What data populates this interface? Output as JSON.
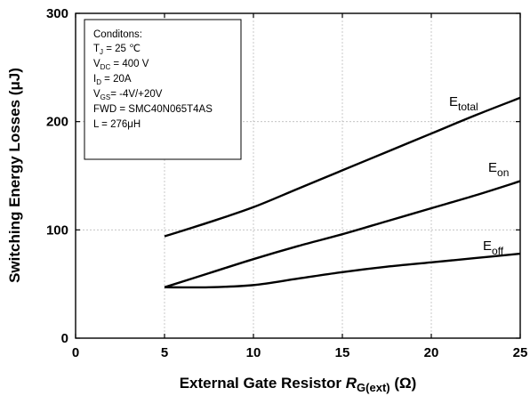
{
  "chart_data": {
    "type": "line",
    "xlabel": {
      "main": "External Gate Resistor ",
      "symbol": "R",
      "symbol_sub": "G(ext)",
      "unit": " (Ω)"
    },
    "ylabel": "Switching Energy Losses (μJ)",
    "xlim": [
      0,
      25
    ],
    "ylim": [
      0,
      300
    ],
    "x_ticks": [
      0,
      5,
      10,
      15,
      20,
      25
    ],
    "y_ticks": [
      0,
      100,
      200,
      300
    ],
    "grid": true,
    "series": [
      {
        "name": "E",
        "name_sub": "total",
        "color": "#000000",
        "x": [
          5,
          7.5,
          10,
          12.5,
          15,
          17.5,
          20,
          22.5,
          25
        ],
        "y": [
          94,
          107,
          121,
          138,
          155,
          172,
          189,
          206,
          222
        ]
      },
      {
        "name": "E",
        "name_sub": "on",
        "color": "#000000",
        "x": [
          5,
          7.5,
          10,
          12.5,
          15,
          17.5,
          20,
          22.5,
          25
        ],
        "y": [
          47,
          60,
          73,
          85,
          96,
          108,
          120,
          132,
          145
        ]
      },
      {
        "name": "E",
        "name_sub": "off",
        "color": "#000000",
        "x": [
          5,
          7.5,
          10,
          12.5,
          15,
          17.5,
          20,
          22.5,
          25
        ],
        "y": [
          47,
          47,
          49,
          55,
          61,
          66,
          70,
          74,
          78
        ]
      }
    ]
  },
  "conditions": {
    "title": "Conditons:",
    "lines": [
      {
        "pre": "T",
        "sub": "J",
        "post": " =  25 ℃"
      },
      {
        "pre": "V",
        "sub": "DC",
        "post": " = 400 V"
      },
      {
        "pre": "I",
        "sub": "D",
        "post": " = 20A"
      },
      {
        "pre": "V",
        "sub": "GS",
        "post": "=  -4V/+20V"
      },
      {
        "pre": "FWD = SMC40N065T4AS",
        "sub": "",
        "post": ""
      },
      {
        "pre": "L = 276μH",
        "sub": "",
        "post": ""
      }
    ]
  }
}
